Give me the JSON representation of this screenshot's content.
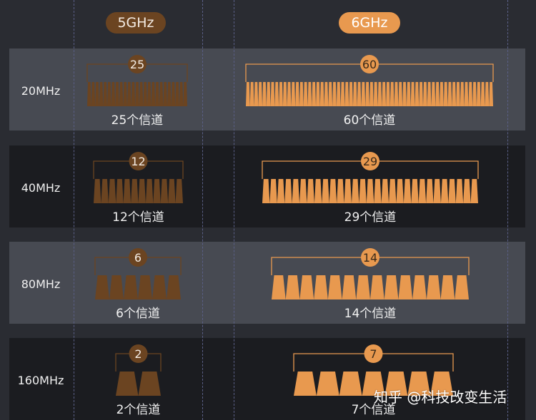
{
  "bands": [
    {
      "label": "5GHz",
      "color": "#6b4421",
      "text_color": "#f4ece4"
    },
    {
      "label": "6GHz",
      "color": "#e8994f",
      "text_color": "#ffffff"
    }
  ],
  "rows": [
    {
      "bandwidth": "20MHz",
      "channels_5ghz": 25,
      "badge_5ghz": "25",
      "caption_5ghz": "25个信道",
      "channels_6ghz": 60,
      "badge_6ghz": "60",
      "caption_6ghz": "60个信道"
    },
    {
      "bandwidth": "40MHz",
      "channels_5ghz": 12,
      "badge_5ghz": "12",
      "caption_5ghz": "12个信道",
      "channels_6ghz": 29,
      "badge_6ghz": "29",
      "caption_6ghz": "29个信道"
    },
    {
      "bandwidth": "80MHz",
      "channels_5ghz": 6,
      "badge_5ghz": "6",
      "caption_5ghz": "6个信道",
      "channels_6ghz": 14,
      "badge_6ghz": "14",
      "caption_6ghz": "14个信道"
    },
    {
      "bandwidth": "160MHz",
      "channels_5ghz": 2,
      "badge_5ghz": "2",
      "caption_5ghz": "2个信道",
      "channels_6ghz": 7,
      "badge_6ghz": "7",
      "caption_6ghz": "7个信道"
    }
  ],
  "watermark": "知乎 @科技改变生活"
}
